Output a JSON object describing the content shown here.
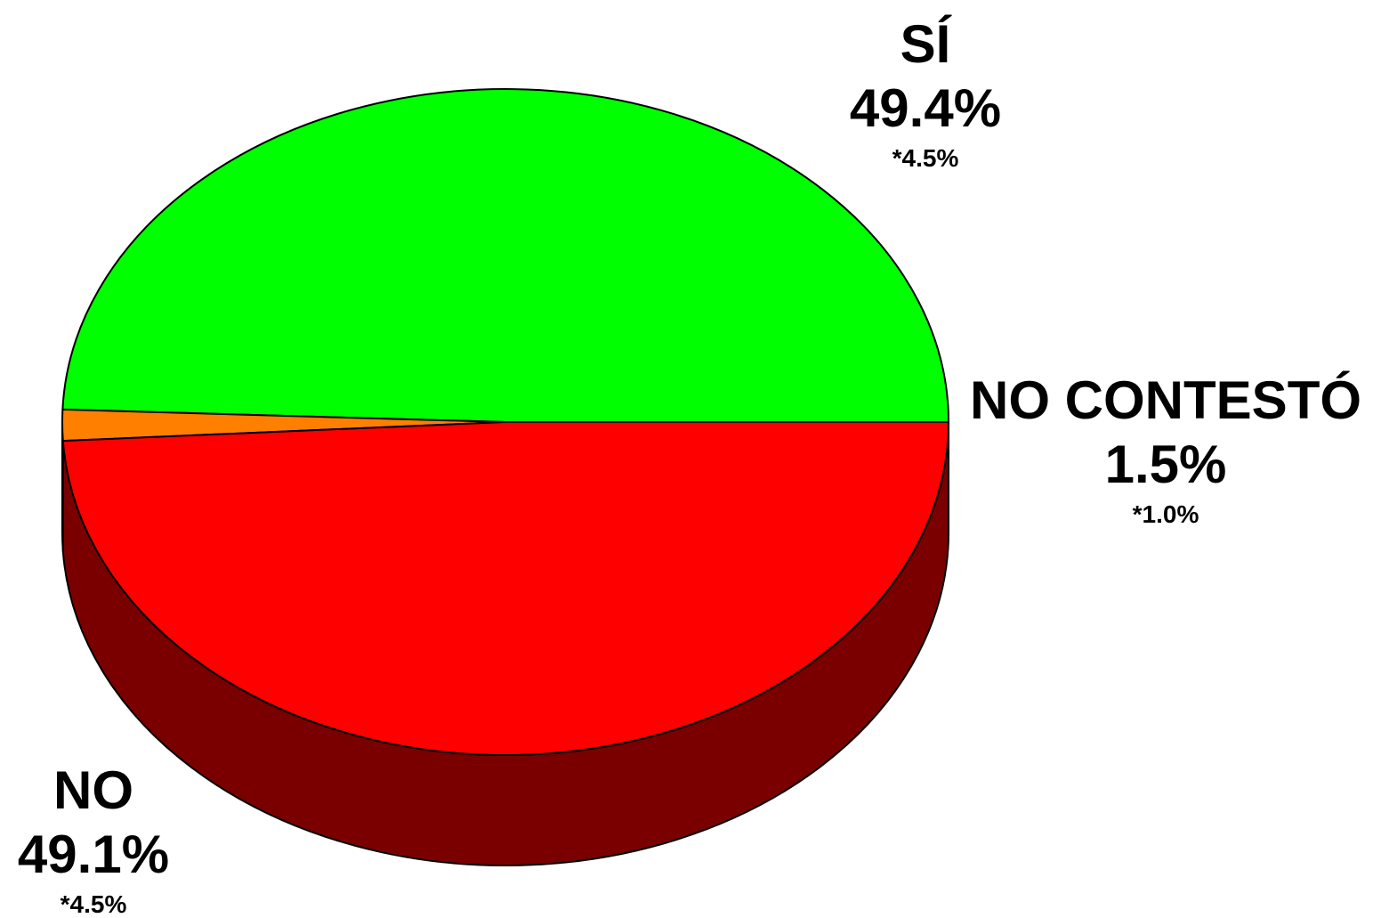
{
  "chart_data": {
    "type": "pie",
    "style": "3d",
    "slices": [
      {
        "label": "SÍ",
        "value": 49.4,
        "value_label": "49.4%",
        "margin": "*4.5%",
        "color": "#00ff00"
      },
      {
        "label": "NO CONTESTÓ",
        "value": 1.5,
        "value_label": "1.5%",
        "margin": "*1.0%",
        "color": "#ff8000"
      },
      {
        "label": "NO",
        "value": 49.1,
        "value_label": "49.1%",
        "margin": "*4.5%",
        "color": "#ff0000"
      }
    ],
    "side_colors": {
      "NO": "#7a0000",
      "NO CONTESTÓ": "#804000",
      "SÍ": "#007a00"
    },
    "outline_color": "#000000"
  }
}
